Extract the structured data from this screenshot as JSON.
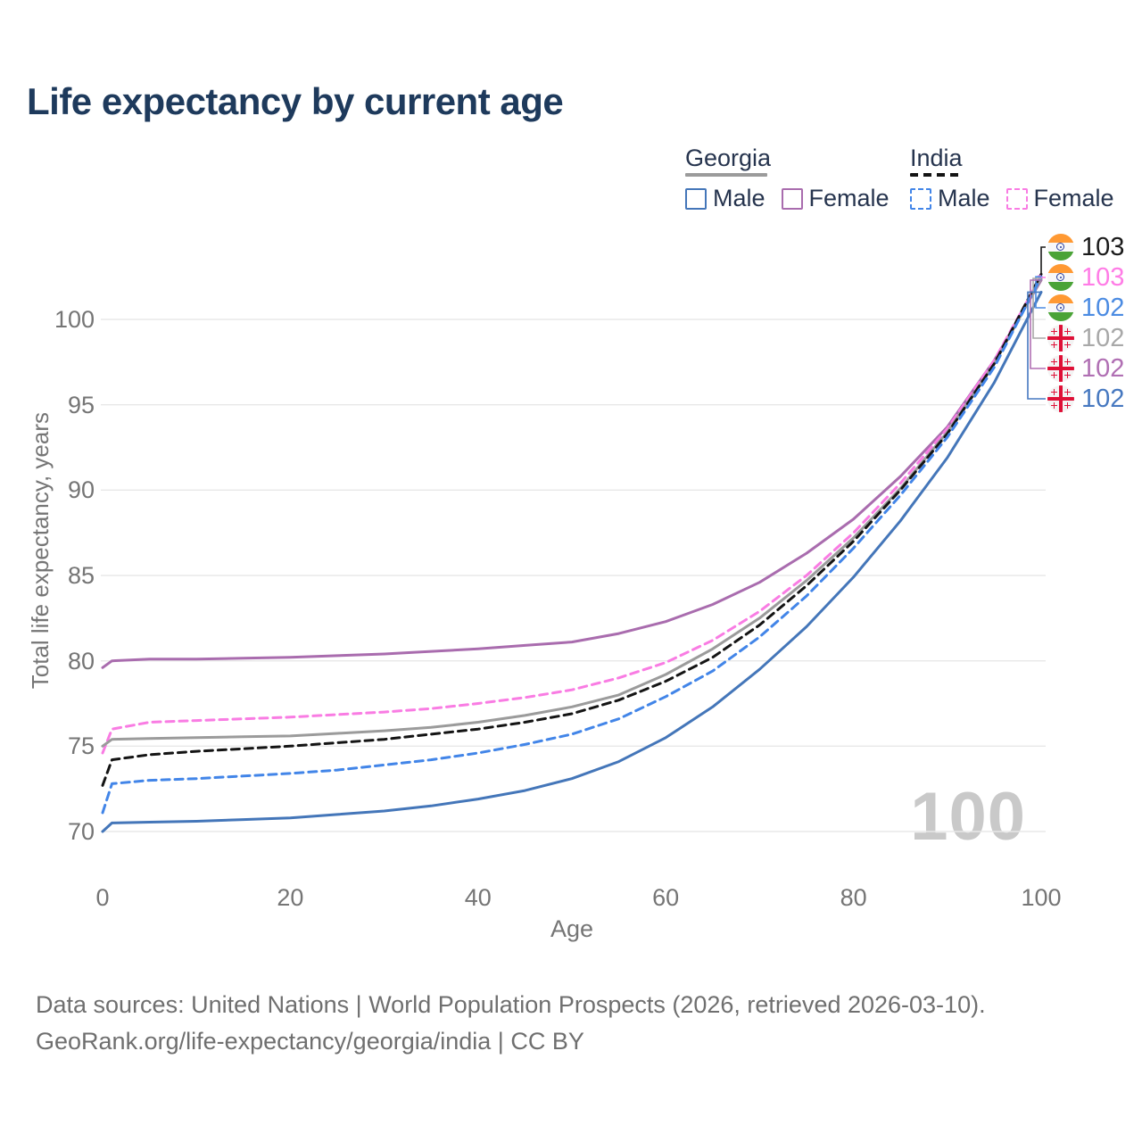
{
  "title": "Life expectancy by current age",
  "watermark": "100",
  "legend": {
    "groups": [
      {
        "label": "Georgia",
        "line_style": "solid",
        "line_color": "#9b9b9b",
        "items": [
          {
            "label": "Male",
            "color": "#4476b9",
            "dashed": false
          },
          {
            "label": "Female",
            "color": "#a96cae",
            "dashed": false
          }
        ]
      },
      {
        "label": "India",
        "line_style": "dashed",
        "line_color": "#141414",
        "items": [
          {
            "label": "Male",
            "color": "#4285e8",
            "dashed": true
          },
          {
            "label": "Female",
            "color": "#f97ce3",
            "dashed": true
          }
        ]
      }
    ]
  },
  "chart_data": {
    "type": "line",
    "title": "Life expectancy by current age",
    "xlabel": "Age",
    "ylabel": "Total life expectancy, years",
    "xlim": [
      0,
      100
    ],
    "ylim": [
      70,
      100
    ],
    "x_ticks": [
      0,
      20,
      40,
      60,
      80,
      100
    ],
    "y_ticks": [
      70,
      75,
      80,
      85,
      90,
      95,
      100
    ],
    "grid": true,
    "legend_position": "top-right",
    "x": [
      0,
      1,
      5,
      10,
      15,
      20,
      25,
      30,
      35,
      40,
      45,
      50,
      55,
      60,
      65,
      70,
      75,
      80,
      85,
      90,
      95,
      100
    ],
    "series": [
      {
        "name": "Georgia Female",
        "country": "Georgia",
        "sex": "Female",
        "color": "#a96cae",
        "dashed": false,
        "values": [
          79.6,
          80.0,
          80.1,
          80.1,
          80.15,
          80.2,
          80.3,
          80.4,
          80.55,
          80.7,
          80.9,
          81.1,
          81.6,
          82.3,
          83.3,
          84.6,
          86.3,
          88.3,
          90.8,
          93.7,
          97.6,
          102.3
        ]
      },
      {
        "name": "India Female",
        "country": "India",
        "sex": "Female",
        "color": "#f97ce3",
        "dashed": true,
        "values": [
          74.6,
          76.0,
          76.4,
          76.5,
          76.6,
          76.7,
          76.85,
          77.0,
          77.2,
          77.5,
          77.85,
          78.3,
          79.0,
          79.9,
          81.2,
          82.9,
          85.0,
          87.5,
          90.4,
          93.6,
          97.6,
          102.55
        ]
      },
      {
        "name": "Georgia",
        "country": "Georgia",
        "sex": "Both",
        "color": "#9b9b9b",
        "dashed": false,
        "values": [
          75.0,
          75.4,
          75.45,
          75.5,
          75.55,
          75.6,
          75.75,
          75.9,
          76.1,
          76.4,
          76.8,
          77.3,
          78.0,
          79.2,
          80.7,
          82.5,
          84.7,
          87.2,
          90.1,
          93.4,
          97.4,
          102.4
        ]
      },
      {
        "name": "India",
        "country": "India",
        "sex": "Both",
        "color": "#141414",
        "dashed": true,
        "values": [
          72.7,
          74.2,
          74.5,
          74.7,
          74.85,
          75.0,
          75.2,
          75.4,
          75.7,
          76.0,
          76.4,
          76.9,
          77.7,
          78.8,
          80.2,
          82.1,
          84.4,
          87.0,
          90.0,
          93.3,
          97.4,
          102.65
        ]
      },
      {
        "name": "India Male",
        "country": "India",
        "sex": "Male",
        "color": "#4285e8",
        "dashed": true,
        "values": [
          71.1,
          72.8,
          73.0,
          73.1,
          73.25,
          73.4,
          73.6,
          73.9,
          74.2,
          74.6,
          75.1,
          75.7,
          76.6,
          77.9,
          79.4,
          81.4,
          83.8,
          86.6,
          89.7,
          93.1,
          97.2,
          102.5
        ]
      },
      {
        "name": "Georgia Male",
        "country": "Georgia",
        "sex": "Male",
        "color": "#4476b9",
        "dashed": false,
        "values": [
          70.0,
          70.5,
          70.55,
          70.6,
          70.7,
          70.8,
          71.0,
          71.2,
          71.5,
          71.9,
          72.4,
          73.1,
          74.1,
          75.5,
          77.3,
          79.5,
          82.0,
          84.9,
          88.2,
          91.9,
          96.3,
          101.6
        ]
      }
    ],
    "end_labels": [
      {
        "value": "103",
        "flag": "india",
        "color": "#1a1a1a",
        "series": "India"
      },
      {
        "value": "103",
        "flag": "india",
        "color": "#ff7ce6",
        "series": "India Female"
      },
      {
        "value": "102",
        "flag": "india",
        "color": "#4b8be2",
        "series": "India Male"
      },
      {
        "value": "102",
        "flag": "georgia",
        "color": "#a8a8a8",
        "series": "Georgia"
      },
      {
        "value": "102",
        "flag": "georgia",
        "color": "#b06fb3",
        "series": "Georgia Female"
      },
      {
        "value": "102",
        "flag": "georgia",
        "color": "#4678c0",
        "series": "Georgia Male"
      }
    ]
  },
  "footer": {
    "line1": "Data sources: United Nations | World Population Prospects (2026, retrieved 2026-03-10).",
    "line2": "GeoRank.org/life-expectancy/georgia/india | CC BY"
  }
}
